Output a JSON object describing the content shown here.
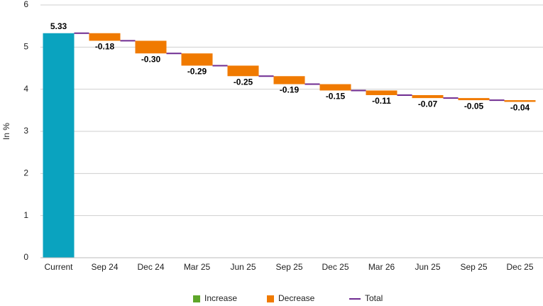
{
  "chart_data": {
    "type": "waterfall",
    "ylabel": "In %",
    "start": {
      "category": "Current",
      "value": 5.33,
      "value_label": "5.33",
      "color": "#0aa3bf"
    },
    "categories": [
      "Sep 24",
      "Dec 24",
      "Mar 25",
      "Jun 25",
      "Sep 25",
      "Dec 25",
      "Mar 26",
      "Jun 25",
      "Sep 25",
      "Dec 25"
    ],
    "values": [
      -0.18,
      -0.3,
      -0.29,
      -0.25,
      -0.19,
      -0.15,
      -0.11,
      -0.07,
      -0.05,
      -0.04
    ],
    "value_labels": [
      "-0.18",
      "-0.30",
      "-0.29",
      "-0.25",
      "-0.19",
      "-0.15",
      "-0.11",
      "-0.07",
      "-0.05",
      "-0.04"
    ],
    "ylim": [
      0,
      6
    ],
    "yticks": [
      0,
      1,
      2,
      3,
      4,
      5,
      6
    ],
    "grid": true,
    "legend": [
      {
        "name": "Increase",
        "color": "#5ea62a"
      },
      {
        "name": "Decrease",
        "color": "#f07a00"
      },
      {
        "name": "Total",
        "color": "#6f2c91"
      }
    ]
  }
}
